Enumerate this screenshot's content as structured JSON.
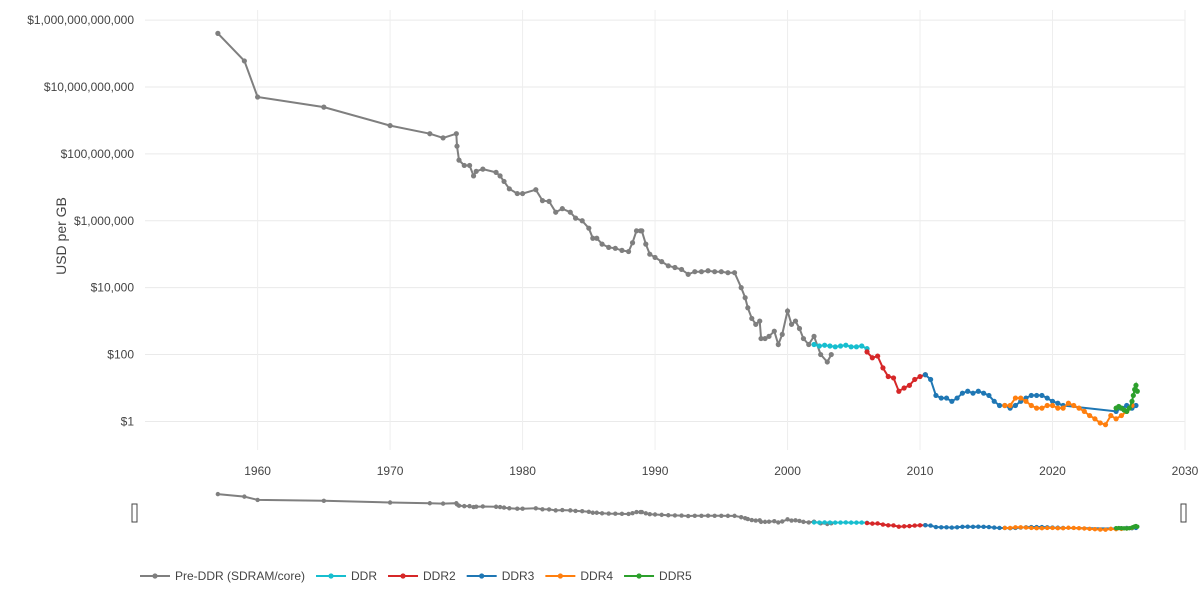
{
  "chart_data": {
    "type": "line",
    "title": "",
    "xlabel": "",
    "ylabel": "USD per GB",
    "x_ticks": [
      "1960",
      "1970",
      "1980",
      "1990",
      "2000",
      "2010",
      "2020",
      "2030"
    ],
    "y_ticks": [
      "$1",
      "$100",
      "$10,000",
      "$1,000,000",
      "$100,000,000",
      "$10,000,000,000",
      "$1,000,000,000,000"
    ],
    "xlim": [
      1951.5,
      2030
    ],
    "ylim": [
      0.14,
      2000000000000
    ],
    "y_scale": "log",
    "grid": true,
    "legend_position": "bottom-left",
    "range_slider": true,
    "series": [
      {
        "name": "Pre-DDR (SDRAM/core)",
        "color": "#7f7f7f",
        "x": [
          1957,
          1959,
          1960,
          1965,
          1970,
          1973,
          1974,
          1975,
          1975.05,
          1975.2,
          1975.6,
          1976,
          1976.3,
          1976.5,
          1977,
          1978,
          1978.3,
          1978.6,
          1979,
          1979.6,
          1980,
          1981,
          1981.5,
          1982,
          1982.5,
          1983,
          1983.6,
          1984,
          1984.5,
          1985,
          1985.3,
          1985.6,
          1986,
          1986.5,
          1987,
          1987.5,
          1988,
          1988.3,
          1988.6,
          1988.9,
          1989,
          1989.3,
          1989.6,
          1990,
          1990.5,
          1991,
          1991.5,
          1992,
          1992.5,
          1993,
          1993.5,
          1994,
          1994.5,
          1995,
          1995.5,
          1996,
          1996.5,
          1996.8,
          1997,
          1997.3,
          1997.6,
          1997.9,
          1998,
          1998.3,
          1998.6,
          1999,
          1999.3,
          1999.6,
          2000,
          2000.3,
          2000.6,
          2000.9,
          2001.2,
          2001.6,
          2002,
          2002.5,
          2003,
          2003.3
        ],
        "y": [
          400000000000,
          60000000000,
          5000000000,
          2500000000,
          700000000,
          400000000,
          300000000,
          400000000,
          170000000,
          65000000,
          45000000,
          45000000,
          22000000,
          30000000,
          35000000,
          28000000,
          22000000,
          15000000,
          9000000,
          6500000,
          6500000,
          8500000,
          4000000,
          3800000,
          1800000,
          2300000,
          1800000,
          1200000,
          1000000,
          600000,
          300000,
          300000,
          200000,
          160000,
          150000,
          130000,
          120000,
          220000,
          500000,
          500000,
          500000,
          200000,
          100000,
          80000,
          60000,
          45000,
          40000,
          35000,
          25000,
          30000,
          30000,
          32000,
          30000,
          30000,
          28000,
          28000,
          10000,
          5000,
          2500,
          1200,
          800,
          1000,
          300,
          300,
          350,
          500,
          200,
          400,
          2000,
          800,
          1000,
          600,
          300,
          200,
          350,
          100,
          60,
          100
        ],
        "marker_x": [
          1957,
          1959,
          1960,
          1965,
          1970,
          1973,
          1974,
          1975,
          1975.05,
          1975.2,
          1975.6,
          1976,
          1976.3,
          1976.5,
          1977,
          1978,
          1978.3,
          1978.6,
          1979,
          1979.6,
          1980,
          1981,
          1981.5,
          1982,
          1982.5,
          1983,
          1983.6,
          1984,
          1984.5,
          1985,
          1985.3,
          1985.6,
          1986,
          1986.5,
          1987,
          1987.5,
          1988,
          1988.3,
          1988.6,
          1988.9,
          1989,
          1989.3,
          1989.6,
          1990,
          1990.5,
          1991,
          1991.5,
          1992,
          1992.5,
          1993,
          1993.5,
          1994,
          1994.5,
          1995,
          1995.5,
          1996,
          1996.5,
          1996.8,
          1997,
          1997.3,
          1997.6,
          1997.9,
          1998,
          1998.3,
          1998.6,
          1999,
          1999.3,
          1999.6,
          2000,
          2000.3,
          2000.6,
          2000.9,
          2001.2,
          2001.6,
          2002,
          2002.5,
          2003,
          2003.3
        ]
      },
      {
        "name": "DDR",
        "color": "#17becf",
        "x": [
          2002.0,
          2002.4,
          2002.8,
          2003.2,
          2003.6,
          2004.0,
          2004.4,
          2004.8,
          2005.2,
          2005.6,
          2006.0
        ],
        "y": [
          200,
          180,
          190,
          180,
          170,
          180,
          190,
          170,
          170,
          180,
          150
        ]
      },
      {
        "name": "DDR2",
        "color": "#d62728",
        "x": [
          2006.0,
          2006.4,
          2006.8,
          2007.2,
          2007.6,
          2008.0,
          2008.4,
          2008.8,
          2009.2,
          2009.6,
          2010.0,
          2010.4
        ],
        "y": [
          120,
          80,
          90,
          40,
          22,
          20,
          8,
          10,
          12,
          18,
          22,
          25
        ]
      },
      {
        "name": "DDR3",
        "color": "#1f77b4",
        "x": [
          2010.4,
          2010.8,
          2011.2,
          2011.6,
          2012.0,
          2012.4,
          2012.8,
          2013.2,
          2013.6,
          2014.0,
          2014.4,
          2014.8,
          2015.2,
          2015.6,
          2016.0,
          2016.4,
          2016.8,
          2017.2,
          2017.6,
          2018.0,
          2018.4,
          2018.8,
          2019.2,
          2019.6,
          2020.0,
          2020.4,
          2020.8,
          2024.8,
          2025.2,
          2025.6,
          2026.0,
          2026.3
        ],
        "y": [
          25,
          18,
          6,
          5,
          5,
          4,
          5,
          7,
          8,
          7,
          8,
          7,
          6,
          4,
          3,
          3,
          2.5,
          3,
          4,
          5,
          6,
          6,
          6,
          5,
          4,
          3.5,
          3,
          2,
          2.5,
          3,
          2.5,
          3
        ]
      },
      {
        "name": "DDR4",
        "color": "#ff7f0e",
        "x": [
          2016.4,
          2016.8,
          2017.2,
          2017.6,
          2018.0,
          2018.4,
          2018.8,
          2019.2,
          2019.6,
          2020.0,
          2020.4,
          2020.8,
          2021.2,
          2021.6,
          2022.0,
          2022.4,
          2022.8,
          2023.2,
          2023.6,
          2024.0,
          2024.4,
          2024.8,
          2025.2,
          2025.6,
          2026.0
        ],
        "y": [
          3,
          3,
          5,
          5,
          4,
          3,
          2.5,
          2.5,
          3,
          3,
          2.5,
          2.5,
          3.5,
          3,
          2.5,
          2,
          1.5,
          1.2,
          0.9,
          0.8,
          1.5,
          1.2,
          1.5,
          2,
          3
        ]
      },
      {
        "name": "DDR5",
        "color": "#2ca02c",
        "x": [
          2024.8,
          2025.0,
          2025.2,
          2025.4,
          2025.6,
          2025.8,
          2026.0,
          2026.1,
          2026.2,
          2026.3,
          2026.4
        ],
        "y": [
          2.5,
          2.8,
          2.5,
          2.2,
          2,
          2.5,
          4,
          6,
          9,
          12,
          8
        ]
      }
    ]
  }
}
